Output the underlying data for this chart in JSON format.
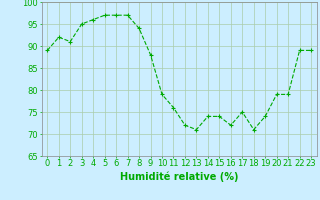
{
  "x": [
    0,
    1,
    2,
    3,
    4,
    5,
    6,
    7,
    8,
    9,
    10,
    11,
    12,
    13,
    14,
    15,
    16,
    17,
    18,
    19,
    20,
    21,
    22,
    23
  ],
  "y": [
    89,
    92,
    91,
    95,
    96,
    97,
    97,
    97,
    94,
    88,
    79,
    76,
    72,
    71,
    74,
    74,
    72,
    75,
    71,
    74,
    79,
    79,
    89,
    89
  ],
  "xlabel": "Humidité relative (%)",
  "ylim": [
    65,
    100
  ],
  "yticks": [
    65,
    70,
    75,
    80,
    85,
    90,
    95,
    100
  ],
  "line_color": "#00aa00",
  "marker_color": "#00aa00",
  "bg_color": "#cceeff",
  "grid_color": "#aaccaa",
  "xlabel_color": "#00aa00",
  "tick_color": "#00aa00",
  "xlabel_fontsize": 7,
  "tick_fontsize": 6
}
